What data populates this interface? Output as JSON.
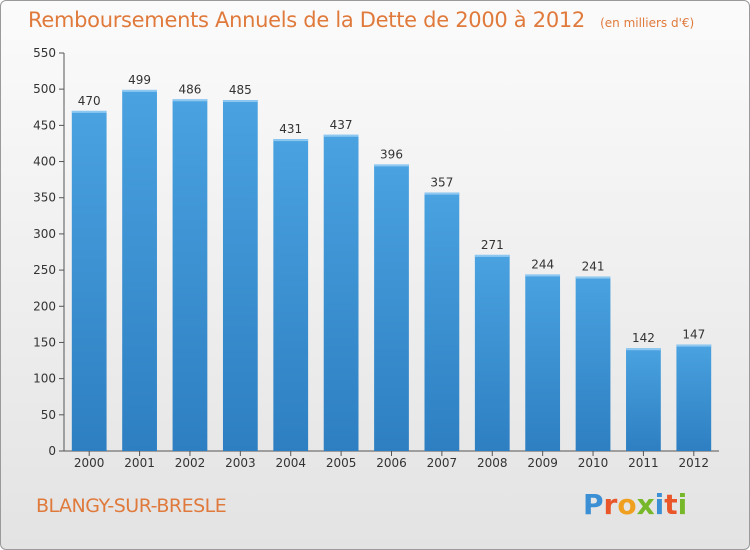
{
  "chart_data": {
    "type": "bar",
    "title": "Remboursements Annuels de la Dette de 2000 à 2012",
    "unit_note": "(en milliers d'€)",
    "categories": [
      "2000",
      "2001",
      "2002",
      "2003",
      "2004",
      "2005",
      "2006",
      "2007",
      "2008",
      "2009",
      "2010",
      "2011",
      "2012"
    ],
    "values": [
      470,
      499,
      486,
      485,
      431,
      437,
      396,
      357,
      271,
      244,
      241,
      142,
      147
    ],
    "ylim": [
      0,
      550
    ],
    "yticks": [
      0,
      50,
      100,
      150,
      200,
      250,
      300,
      350,
      400,
      450,
      500,
      550
    ],
    "xlabel": "",
    "ylabel": "",
    "grid": false,
    "bar_color": "#4aa2e0",
    "bar_color_dark": "#2d7fc1"
  },
  "footer": {
    "commune": "BLANGY-SUR-BRESLE",
    "logo_letters": [
      "P",
      "r",
      "o",
      "x",
      "i",
      "t",
      "i"
    ],
    "logo_colors": [
      "#3b8fd4",
      "#e8562a",
      "#f0a020",
      "#77b82a",
      "#3b8fd4",
      "#e8562a",
      "#77b82a"
    ]
  }
}
